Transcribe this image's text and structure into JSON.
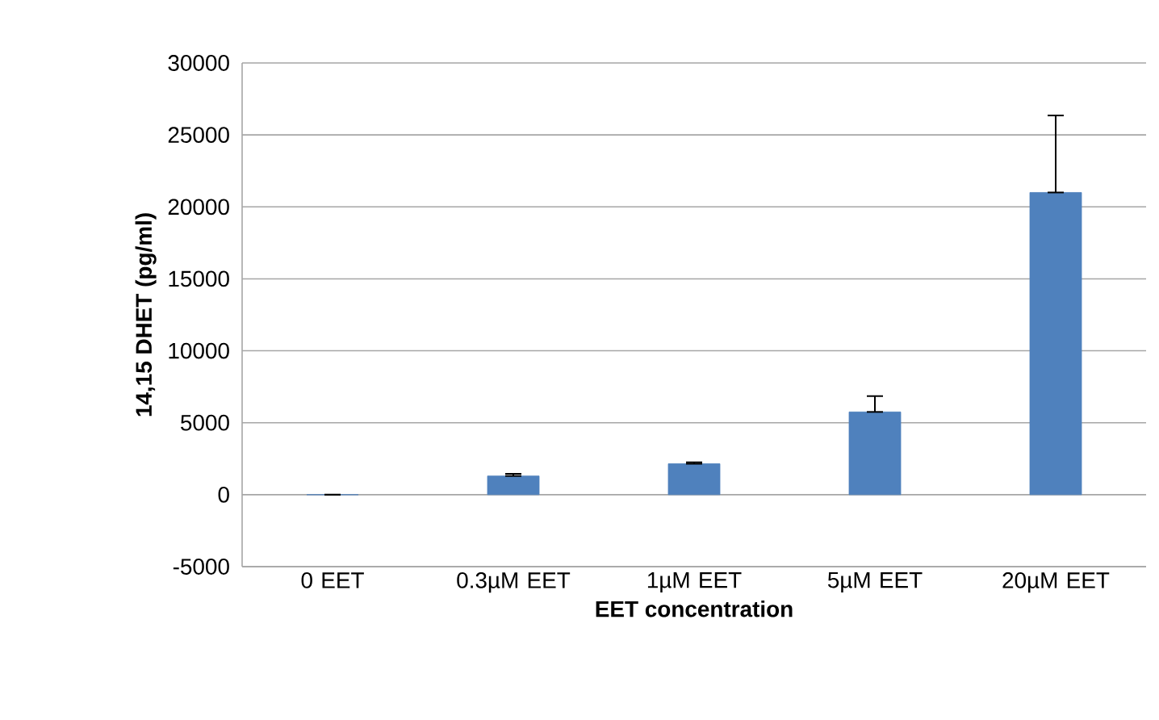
{
  "chart_data": {
    "type": "bar",
    "xlabel": "EET concentration",
    "ylabel": "14,15 DHET (pg/ml)",
    "categories": [
      "0 EET",
      "0.3µM EET",
      "1µM EET",
      "5µM EET",
      "20µM EET"
    ],
    "values": [
      0,
      1300,
      2150,
      5750,
      21000
    ],
    "errors": [
      null,
      [
        1300,
        1450
      ],
      [
        2150,
        2250
      ],
      [
        5750,
        6850
      ],
      [
        21000,
        26350
      ]
    ],
    "color": "#4f81bd",
    "ylim": [
      -5000,
      30000
    ],
    "yticks": [
      -5000,
      0,
      5000,
      10000,
      15000,
      20000,
      25000,
      30000
    ],
    "grid": "y"
  }
}
